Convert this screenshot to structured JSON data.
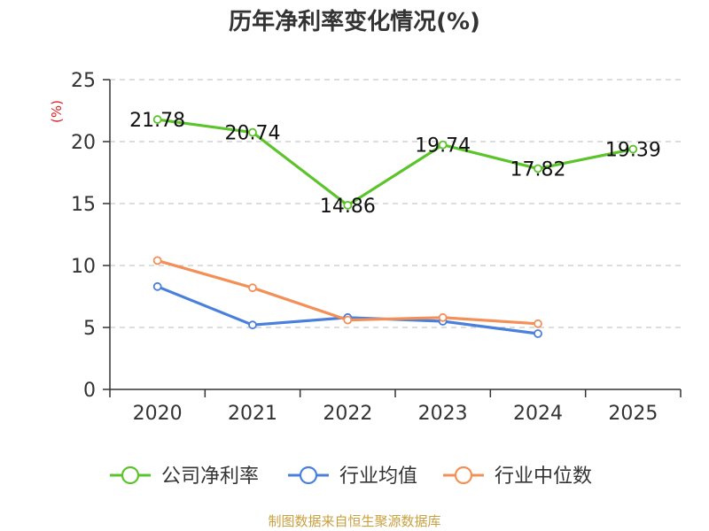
{
  "chart_data": {
    "type": "line",
    "title": "历年净利率变化情况(%)",
    "ylabel": "(%)",
    "xlabel": "",
    "categories": [
      "2020",
      "2021",
      "2022",
      "2023",
      "2024",
      "2025"
    ],
    "ylim": [
      0,
      25
    ],
    "yticks": [
      0,
      5,
      10,
      15,
      20,
      25
    ],
    "grid": true,
    "legend_position": "bottom",
    "series": [
      {
        "name": "公司净利率",
        "color": "#5cc42b",
        "values": [
          21.78,
          20.74,
          14.86,
          19.74,
          17.82,
          19.39
        ],
        "labels": [
          "21.78",
          "20.74",
          "14.86",
          "19.74",
          "17.82",
          "19.39"
        ],
        "show_labels": true
      },
      {
        "name": "行业均值",
        "color": "#4a80dc",
        "values": [
          8.3,
          5.2,
          5.8,
          5.5,
          4.5,
          null
        ],
        "show_labels": false
      },
      {
        "name": "行业中位数",
        "color": "#f29058",
        "values": [
          10.4,
          8.2,
          5.6,
          5.8,
          5.3,
          null
        ],
        "show_labels": false
      }
    ],
    "source": "制图数据来自恒生聚源数据库"
  }
}
